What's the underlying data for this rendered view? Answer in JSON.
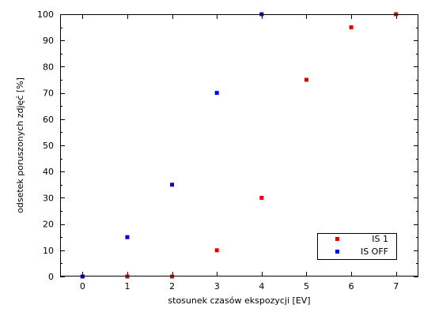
{
  "chart_data": {
    "type": "scatter",
    "xlabel": "stosunek czasów ekspozycji [EV]",
    "ylabel": "odsetek poruszonych zdjęć [%]",
    "xlim": [
      -0.5,
      7.5
    ],
    "ylim": [
      0,
      100
    ],
    "x_ticks": [
      0,
      1,
      2,
      3,
      4,
      5,
      6,
      7
    ],
    "y_ticks": [
      0,
      10,
      20,
      30,
      40,
      50,
      60,
      70,
      80,
      90,
      100
    ],
    "grid": false,
    "legend_position": "bottom-right",
    "series": [
      {
        "name": "IS 1",
        "color": "#e00000",
        "marker": "square",
        "x": [
          0,
          1,
          2,
          3,
          4,
          5,
          6,
          7
        ],
        "y": [
          0,
          0,
          0,
          10,
          30,
          75,
          95,
          100
        ]
      },
      {
        "name": "IS OFF",
        "color": "#0000e0",
        "marker": "square",
        "x": [
          0,
          1,
          2,
          3,
          4
        ],
        "y": [
          0,
          15,
          35,
          70,
          100
        ]
      }
    ]
  }
}
